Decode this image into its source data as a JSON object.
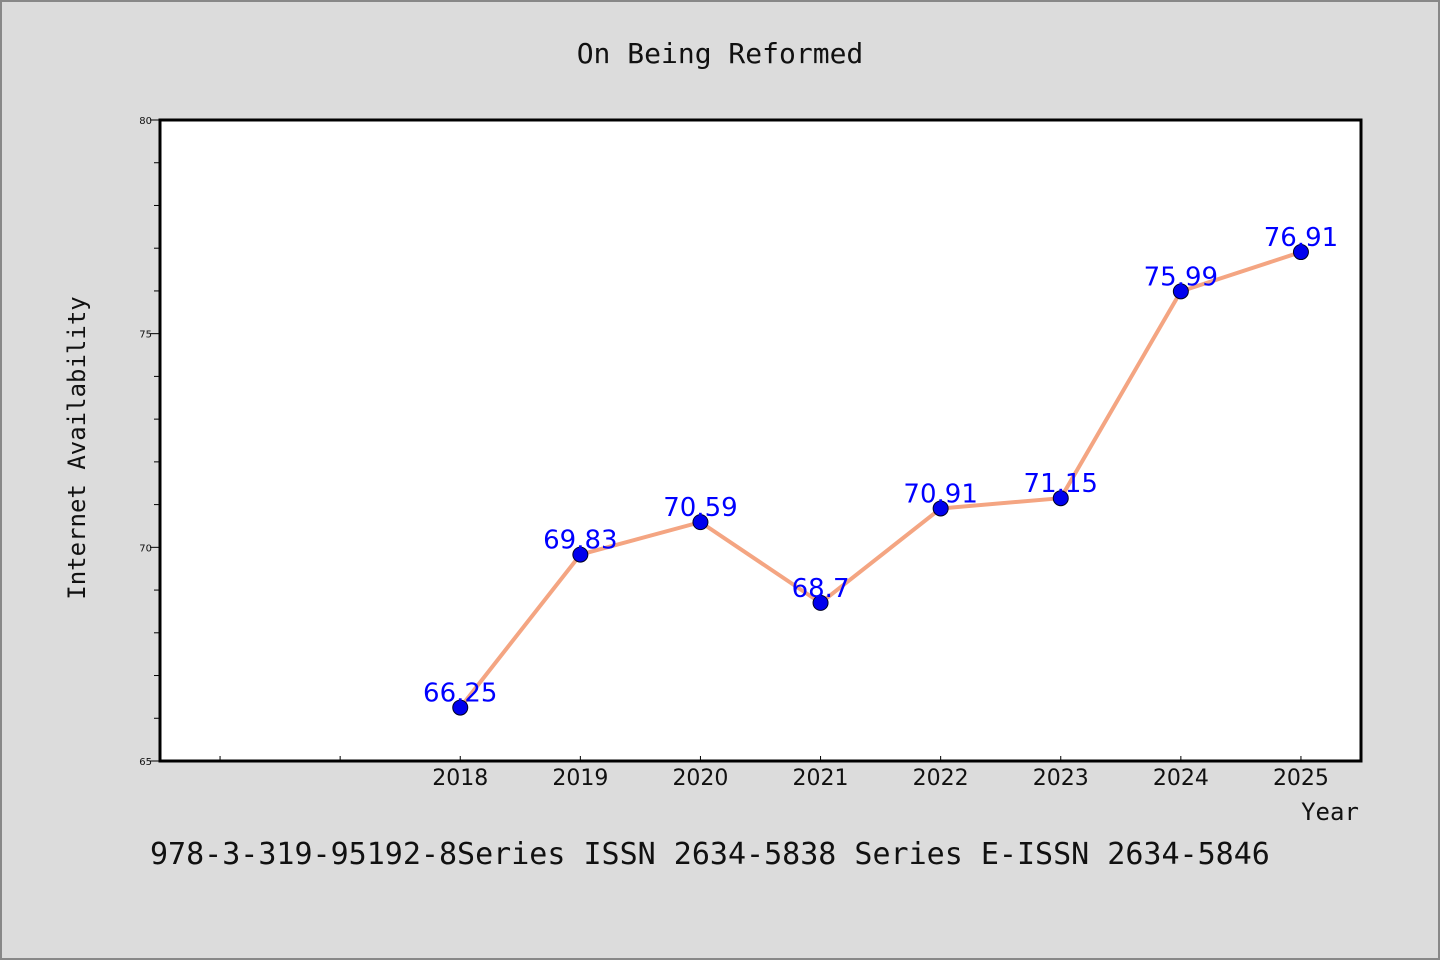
{
  "colors": {
    "background": "#dcdcdc",
    "plot_background": "#ffffff",
    "line": "#f4a582",
    "marker": "#0000ee",
    "label": "#0000ff"
  },
  "footer": "978-3-319-95192-8Series ISSN 2634-5838 Series E-ISSN 2634-5846",
  "chart_data": {
    "type": "line",
    "title": "On Being Reformed",
    "xlabel": "Year",
    "ylabel": "Internet Availability",
    "x": [
      "2018",
      "2019",
      "2020",
      "2021",
      "2022",
      "2023",
      "2024",
      "2025"
    ],
    "series": [
      {
        "values": [
          66.25,
          69.83,
          70.59,
          68.7,
          70.91,
          71.15,
          75.99,
          76.91
        ]
      }
    ],
    "data_labels": [
      "66.25",
      "69.83",
      "70.59",
      "68.7",
      "70.91",
      "71.15",
      "75.99",
      "76.91"
    ],
    "ylim": [
      65,
      80
    ],
    "yticks": [
      "65",
      "70",
      "75",
      "80"
    ],
    "x_domain": [
      2015.5,
      2025.5
    ],
    "grid": false,
    "legend": "none"
  }
}
